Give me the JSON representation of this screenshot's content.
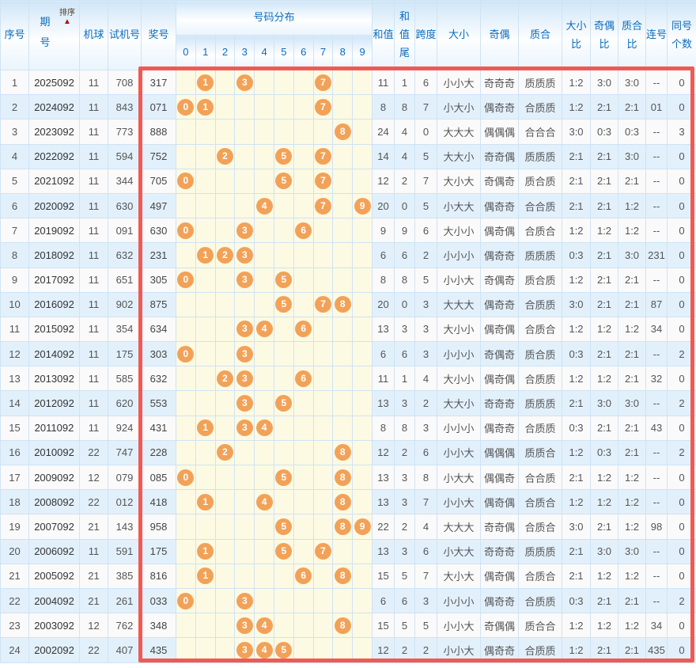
{
  "header": {
    "serial": "序号",
    "period": "期号",
    "sort": "排序",
    "sort_arrow": "▲",
    "machine_ball": "机球",
    "test_number": "试机号",
    "winning_number": "奖号",
    "distribution": "号码分布",
    "digits": [
      "0",
      "1",
      "2",
      "3",
      "4",
      "5",
      "6",
      "7",
      "8",
      "9"
    ],
    "sum": "和值",
    "sum_tail": "和值尾",
    "span": "跨度",
    "size": "大小",
    "parity": "奇偶",
    "prime": "质合",
    "size_ratio": "大小比",
    "parity_ratio": "奇偶比",
    "prime_ratio": "质合比",
    "consecutive": "连号",
    "same_count": "同号个数"
  },
  "colors": {
    "header_text": "#0b6cbe",
    "ball": "#f2a258",
    "row_alt": "#e2f0fb",
    "distribution_bg": "#fdfae3",
    "grid_border": "#cfe3f3",
    "highlight_box": "#f05a54",
    "sort_arrow": "#a81500"
  },
  "rows": [
    {
      "no": "1",
      "period": "2025092",
      "machine": "11",
      "test": "708",
      "win": "317",
      "balls": [
        1,
        3,
        7
      ],
      "sum": "11",
      "tail": "1",
      "span": "6",
      "size": "小小大",
      "parity": "奇奇奇",
      "prime": "质质质",
      "size_ratio": "1:2",
      "parity_ratio": "3:0",
      "prime_ratio": "3:0",
      "consec": "--",
      "same": "0"
    },
    {
      "no": "2",
      "period": "2024092",
      "machine": "11",
      "test": "843",
      "win": "071",
      "balls": [
        0,
        1,
        7
      ],
      "sum": "8",
      "tail": "8",
      "span": "7",
      "size": "小大小",
      "parity": "偶奇奇",
      "prime": "合质质",
      "size_ratio": "1:2",
      "parity_ratio": "2:1",
      "prime_ratio": "2:1",
      "consec": "01",
      "same": "0"
    },
    {
      "no": "3",
      "period": "2023092",
      "machine": "11",
      "test": "773",
      "win": "888",
      "balls": [
        8
      ],
      "sum": "24",
      "tail": "4",
      "span": "0",
      "size": "大大大",
      "parity": "偶偶偶",
      "prime": "合合合",
      "size_ratio": "3:0",
      "parity_ratio": "0:3",
      "prime_ratio": "0:3",
      "consec": "--",
      "same": "3"
    },
    {
      "no": "4",
      "period": "2022092",
      "machine": "11",
      "test": "594",
      "win": "752",
      "balls": [
        2,
        5,
        7
      ],
      "sum": "14",
      "tail": "4",
      "span": "5",
      "size": "大大小",
      "parity": "奇奇偶",
      "prime": "质质质",
      "size_ratio": "2:1",
      "parity_ratio": "2:1",
      "prime_ratio": "3:0",
      "consec": "--",
      "same": "0"
    },
    {
      "no": "5",
      "period": "2021092",
      "machine": "11",
      "test": "344",
      "win": "705",
      "balls": [
        0,
        5,
        7
      ],
      "sum": "12",
      "tail": "2",
      "span": "7",
      "size": "大小大",
      "parity": "奇偶奇",
      "prime": "质合质",
      "size_ratio": "2:1",
      "parity_ratio": "2:1",
      "prime_ratio": "2:1",
      "consec": "--",
      "same": "0"
    },
    {
      "no": "6",
      "period": "2020092",
      "machine": "11",
      "test": "630",
      "win": "497",
      "balls": [
        4,
        7,
        9
      ],
      "sum": "20",
      "tail": "0",
      "span": "5",
      "size": "小大大",
      "parity": "偶奇奇",
      "prime": "合合质",
      "size_ratio": "2:1",
      "parity_ratio": "2:1",
      "prime_ratio": "1:2",
      "consec": "--",
      "same": "0"
    },
    {
      "no": "7",
      "period": "2019092",
      "machine": "11",
      "test": "091",
      "win": "630",
      "balls": [
        0,
        3,
        6
      ],
      "sum": "9",
      "tail": "9",
      "span": "6",
      "size": "大小小",
      "parity": "偶奇偶",
      "prime": "合质合",
      "size_ratio": "1:2",
      "parity_ratio": "1:2",
      "prime_ratio": "1:2",
      "consec": "--",
      "same": "0"
    },
    {
      "no": "8",
      "period": "2018092",
      "machine": "11",
      "test": "632",
      "win": "231",
      "balls": [
        1,
        2,
        3
      ],
      "sum": "6",
      "tail": "6",
      "span": "2",
      "size": "小小小",
      "parity": "偶奇奇",
      "prime": "质质质",
      "size_ratio": "0:3",
      "parity_ratio": "2:1",
      "prime_ratio": "3:0",
      "consec": "231",
      "same": "0"
    },
    {
      "no": "9",
      "period": "2017092",
      "machine": "11",
      "test": "651",
      "win": "305",
      "balls": [
        0,
        3,
        5
      ],
      "sum": "8",
      "tail": "8",
      "span": "5",
      "size": "小小大",
      "parity": "奇偶奇",
      "prime": "质合质",
      "size_ratio": "1:2",
      "parity_ratio": "2:1",
      "prime_ratio": "2:1",
      "consec": "--",
      "same": "0"
    },
    {
      "no": "10",
      "period": "2016092",
      "machine": "11",
      "test": "902",
      "win": "875",
      "balls": [
        5,
        7,
        8
      ],
      "sum": "20",
      "tail": "0",
      "span": "3",
      "size": "大大大",
      "parity": "偶奇奇",
      "prime": "合质质",
      "size_ratio": "3:0",
      "parity_ratio": "2:1",
      "prime_ratio": "2:1",
      "consec": "87",
      "same": "0"
    },
    {
      "no": "11",
      "period": "2015092",
      "machine": "11",
      "test": "354",
      "win": "634",
      "balls": [
        3,
        4,
        6
      ],
      "sum": "13",
      "tail": "3",
      "span": "3",
      "size": "大小小",
      "parity": "偶奇偶",
      "prime": "合质合",
      "size_ratio": "1:2",
      "parity_ratio": "1:2",
      "prime_ratio": "1:2",
      "consec": "34",
      "same": "0"
    },
    {
      "no": "12",
      "period": "2014092",
      "machine": "11",
      "test": "175",
      "win": "303",
      "balls": [
        0,
        3
      ],
      "sum": "6",
      "tail": "6",
      "span": "3",
      "size": "小小小",
      "parity": "奇偶奇",
      "prime": "质合质",
      "size_ratio": "0:3",
      "parity_ratio": "2:1",
      "prime_ratio": "2:1",
      "consec": "--",
      "same": "2"
    },
    {
      "no": "13",
      "period": "2013092",
      "machine": "11",
      "test": "585",
      "win": "632",
      "balls": [
        2,
        3,
        6
      ],
      "sum": "11",
      "tail": "1",
      "span": "4",
      "size": "大小小",
      "parity": "偶奇偶",
      "prime": "合质质",
      "size_ratio": "1:2",
      "parity_ratio": "1:2",
      "prime_ratio": "2:1",
      "consec": "32",
      "same": "0"
    },
    {
      "no": "14",
      "period": "2012092",
      "machine": "11",
      "test": "620",
      "win": "553",
      "balls": [
        3,
        5
      ],
      "sum": "13",
      "tail": "3",
      "span": "2",
      "size": "大大小",
      "parity": "奇奇奇",
      "prime": "质质质",
      "size_ratio": "2:1",
      "parity_ratio": "3:0",
      "prime_ratio": "3:0",
      "consec": "--",
      "same": "2"
    },
    {
      "no": "15",
      "period": "2011092",
      "machine": "11",
      "test": "924",
      "win": "431",
      "balls": [
        1,
        3,
        4
      ],
      "sum": "8",
      "tail": "8",
      "span": "3",
      "size": "小小小",
      "parity": "偶奇奇",
      "prime": "合质质",
      "size_ratio": "0:3",
      "parity_ratio": "2:1",
      "prime_ratio": "2:1",
      "consec": "43",
      "same": "0"
    },
    {
      "no": "16",
      "period": "2010092",
      "machine": "22",
      "test": "747",
      "win": "228",
      "balls": [
        2,
        8
      ],
      "sum": "12",
      "tail": "2",
      "span": "6",
      "size": "小小大",
      "parity": "偶偶偶",
      "prime": "质质合",
      "size_ratio": "1:2",
      "parity_ratio": "0:3",
      "prime_ratio": "2:1",
      "consec": "--",
      "same": "2"
    },
    {
      "no": "17",
      "period": "2009092",
      "machine": "12",
      "test": "079",
      "win": "085",
      "balls": [
        0,
        5,
        8
      ],
      "sum": "13",
      "tail": "3",
      "span": "8",
      "size": "小大大",
      "parity": "偶偶奇",
      "prime": "合合质",
      "size_ratio": "2:1",
      "parity_ratio": "1:2",
      "prime_ratio": "1:2",
      "consec": "--",
      "same": "0"
    },
    {
      "no": "18",
      "period": "2008092",
      "machine": "22",
      "test": "012",
      "win": "418",
      "balls": [
        1,
        4,
        8
      ],
      "sum": "13",
      "tail": "3",
      "span": "7",
      "size": "小小大",
      "parity": "偶奇偶",
      "prime": "合质合",
      "size_ratio": "1:2",
      "parity_ratio": "1:2",
      "prime_ratio": "1:2",
      "consec": "--",
      "same": "0"
    },
    {
      "no": "19",
      "period": "2007092",
      "machine": "21",
      "test": "143",
      "win": "958",
      "balls": [
        5,
        8,
        9
      ],
      "sum": "22",
      "tail": "2",
      "span": "4",
      "size": "大大大",
      "parity": "奇奇偶",
      "prime": "合质合",
      "size_ratio": "3:0",
      "parity_ratio": "2:1",
      "prime_ratio": "1:2",
      "consec": "98",
      "same": "0"
    },
    {
      "no": "20",
      "period": "2006092",
      "machine": "11",
      "test": "591",
      "win": "175",
      "balls": [
        1,
        5,
        7
      ],
      "sum": "13",
      "tail": "3",
      "span": "6",
      "size": "小大大",
      "parity": "奇奇奇",
      "prime": "质质质",
      "size_ratio": "2:1",
      "parity_ratio": "3:0",
      "prime_ratio": "3:0",
      "consec": "--",
      "same": "0"
    },
    {
      "no": "21",
      "period": "2005092",
      "machine": "21",
      "test": "385",
      "win": "816",
      "balls": [
        1,
        6,
        8
      ],
      "sum": "15",
      "tail": "5",
      "span": "7",
      "size": "大小大",
      "parity": "偶奇偶",
      "prime": "合质合",
      "size_ratio": "2:1",
      "parity_ratio": "1:2",
      "prime_ratio": "1:2",
      "consec": "--",
      "same": "0"
    },
    {
      "no": "22",
      "period": "2004092",
      "machine": "21",
      "test": "261",
      "win": "033",
      "balls": [
        0,
        3
      ],
      "sum": "6",
      "tail": "6",
      "span": "3",
      "size": "小小小",
      "parity": "偶奇奇",
      "prime": "合质质",
      "size_ratio": "0:3",
      "parity_ratio": "2:1",
      "prime_ratio": "2:1",
      "consec": "--",
      "same": "2"
    },
    {
      "no": "23",
      "period": "2003092",
      "machine": "12",
      "test": "762",
      "win": "348",
      "balls": [
        3,
        4,
        8
      ],
      "sum": "15",
      "tail": "5",
      "span": "5",
      "size": "小小大",
      "parity": "奇偶偶",
      "prime": "质合合",
      "size_ratio": "1:2",
      "parity_ratio": "1:2",
      "prime_ratio": "1:2",
      "consec": "34",
      "same": "0"
    },
    {
      "no": "24",
      "period": "2002092",
      "machine": "22",
      "test": "407",
      "win": "435",
      "balls": [
        3,
        4,
        5
      ],
      "sum": "12",
      "tail": "2",
      "span": "2",
      "size": "小小大",
      "parity": "偶奇奇",
      "prime": "合质质",
      "size_ratio": "1:2",
      "parity_ratio": "2:1",
      "prime_ratio": "2:1",
      "consec": "435",
      "same": "0"
    }
  ]
}
